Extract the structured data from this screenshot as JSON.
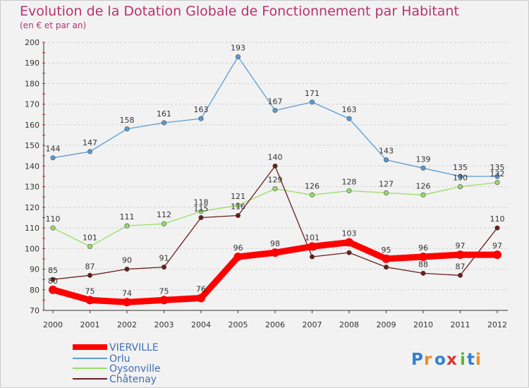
{
  "chart_data": {
    "type": "line",
    "title": "Evolution de la Dotation Globale de Fonctionnement par Habitant",
    "subtitle": "(en € et par an)",
    "x": [
      "2000",
      "2001",
      "2002",
      "2003",
      "2004",
      "2005",
      "2006",
      "2007",
      "2008",
      "2009",
      "2010",
      "2011",
      "2012"
    ],
    "ylim": [
      70,
      200
    ],
    "yticks": [
      70,
      80,
      90,
      100,
      110,
      120,
      130,
      140,
      150,
      160,
      170,
      180,
      190,
      200
    ],
    "grid": "horizontal dashed",
    "legend_position": "bottom-left",
    "series": [
      {
        "name": "VIERVILLE",
        "color": "#ff0000",
        "values": [
          80,
          75,
          74,
          75,
          76,
          96,
          98,
          101,
          103,
          95,
          96,
          97,
          97
        ]
      },
      {
        "name": "Orlu",
        "color": "#5a9bd5",
        "values": [
          144,
          147,
          158,
          161,
          163,
          193,
          167,
          171,
          163,
          143,
          139,
          135,
          135
        ]
      },
      {
        "name": "Oysonville",
        "color": "#99dd66",
        "values": [
          110,
          101,
          111,
          112,
          118,
          121,
          129,
          126,
          128,
          127,
          126,
          130,
          132
        ]
      },
      {
        "name": "Châtenay",
        "color": "#6b1c1c",
        "values": [
          85,
          87,
          90,
          91,
          115,
          116,
          140,
          96,
          98,
          91,
          88,
          87,
          110
        ]
      }
    ],
    "data_labels": {
      "VIERVILLE": [
        "80",
        "75",
        "74",
        "75",
        "76",
        "96",
        "98",
        "101",
        "103",
        "95",
        "96",
        "97",
        "97"
      ],
      "Orlu": [
        "144",
        "147",
        "158",
        "161",
        "163",
        "193",
        "167",
        "171",
        "163",
        "143",
        "139",
        "135",
        "135"
      ],
      "Oysonville": [
        "110",
        "101",
        "111",
        "112",
        "118",
        "121",
        "129",
        "126",
        "128",
        "127",
        "126",
        "130",
        "132"
      ],
      "Châtenay": [
        "85",
        "87",
        "90",
        "91",
        "115",
        "116",
        "140",
        "96",
        "98",
        "91",
        "88",
        "87",
        "110"
      ]
    }
  },
  "logo": {
    "text": "Proxiti",
    "colors": [
      "#2f7fd3",
      "#f28c1e",
      "#2f7fd3",
      "#d33",
      "#5cb82e",
      "#2f7fd3",
      "#f28c1e"
    ]
  }
}
